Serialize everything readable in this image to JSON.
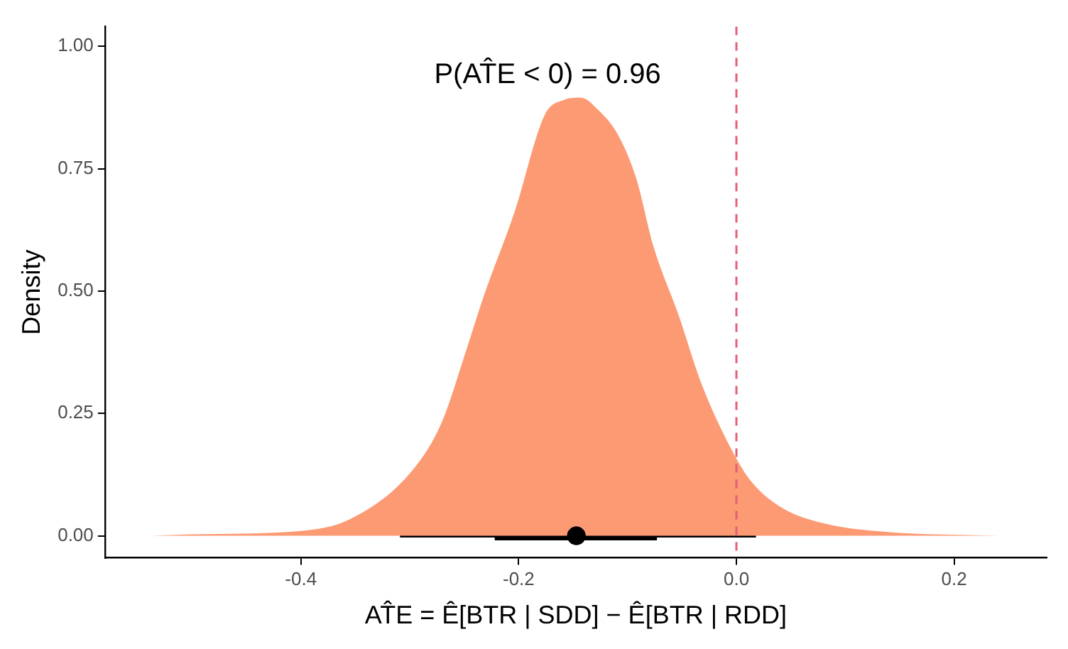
{
  "chart_data": {
    "type": "area",
    "xlabel": "AT̂E = Ê[BTR | SDD] − Ê[BTR | RDD]",
    "ylabel": "Density",
    "annotations": [
      "P(AT̂E < 0) = 0.96"
    ],
    "series": [
      {
        "color": "#fc9a74",
        "x": [
          -0.538,
          -0.5,
          -0.4,
          -0.354,
          -0.299,
          -0.271,
          -0.248,
          -0.232,
          -0.204,
          -0.176,
          -0.159,
          -0.143,
          -0.127,
          -0.109,
          -0.092,
          -0.076,
          -0.053,
          -0.032,
          -0.003,
          0.014,
          0.042,
          0.081,
          0.137,
          0.242
        ],
        "values": [
          0,
          0.003,
          0.01,
          0.035,
          0.13,
          0.23,
          0.38,
          0.49,
          0.66,
          0.86,
          0.89,
          0.895,
          0.87,
          0.82,
          0.73,
          0.59,
          0.45,
          0.31,
          0.17,
          0.11,
          0.057,
          0.025,
          0.008,
          0
        ]
      },
      {
        "type": "scatter",
        "color": "#000000",
        "x": [
          -0.147
        ],
        "values": [
          0
        ],
        "xerrors": [
          [
            -0.309,
            0.018
          ]
        ]
      },
      {
        "type": "scatter",
        "color": "#000000",
        "x": [
          -0.147
        ],
        "values": [
          0
        ],
        "xerrors": [
          [
            -0.222,
            -0.073
          ]
        ]
      }
    ],
    "xlim": [
      -0.58,
      0.285
    ],
    "ylim": [
      -0.045,
      1.04
    ],
    "xticks": [
      -0.4,
      -0.2,
      {
        "value": 0,
        "label": "0.0"
      },
      0.2
    ],
    "yticks": [
      {
        "value": 0,
        "label": "0.00"
      },
      {
        "value": 0.25,
        "label": "0.25"
      },
      {
        "value": 0.5,
        "label": "0.50"
      },
      {
        "value": 0.75,
        "label": "0.75"
      },
      {
        "value": 1,
        "label": "1.00"
      }
    ],
    "ref_lines": [
      {
        "axis": "x",
        "value": 0,
        "color": "#e0607a",
        "line_style": "dashed"
      }
    ],
    "grid": false,
    "legend": false
  }
}
